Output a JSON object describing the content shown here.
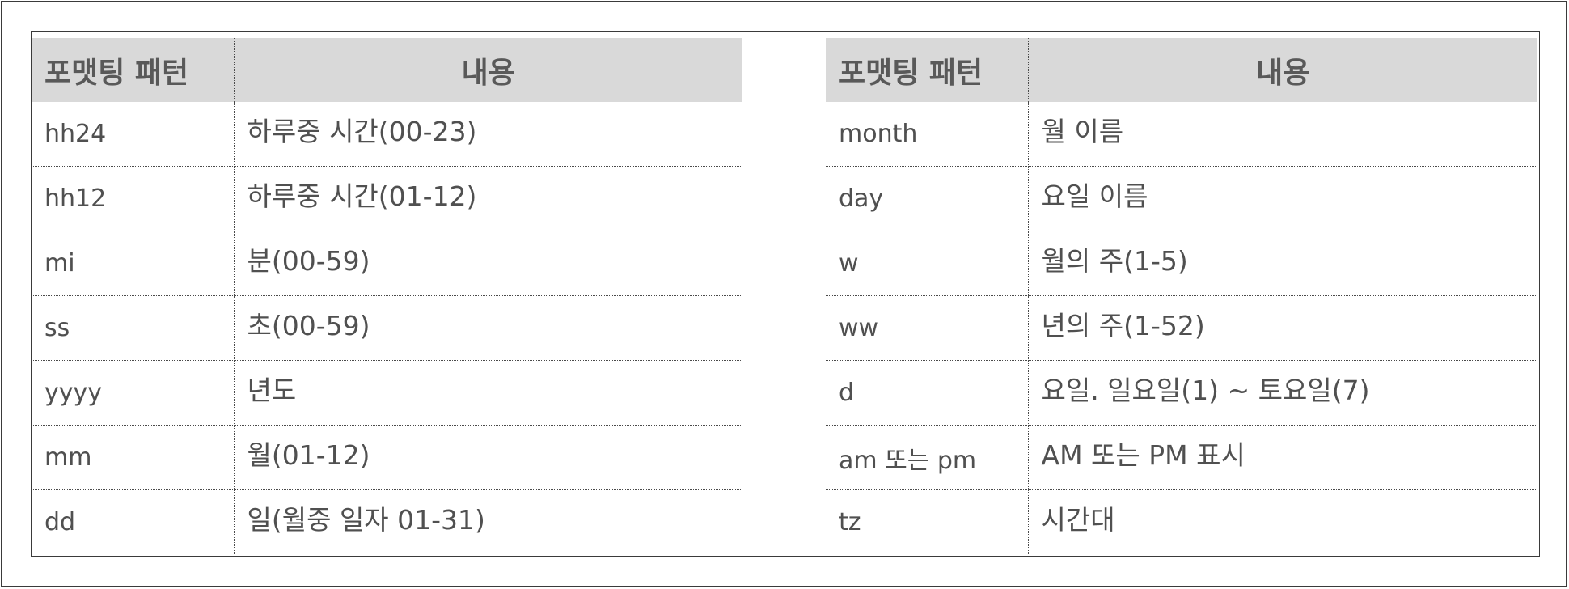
{
  "headers": {
    "pattern": "포맷팅 패턴",
    "content": "내용"
  },
  "left_table": [
    {
      "pattern": "hh24",
      "content": "하루중 시간(00-23)"
    },
    {
      "pattern": "hh12",
      "content": "하루중 시간(01-12)"
    },
    {
      "pattern": "mi",
      "content": "분(00-59)"
    },
    {
      "pattern": "ss",
      "content": "초(00-59)"
    },
    {
      "pattern": "yyyy",
      "content": "년도"
    },
    {
      "pattern": "mm",
      "content": "월(01-12)"
    },
    {
      "pattern": "dd",
      "content": "일(월중 일자 01-31)"
    }
  ],
  "right_table": [
    {
      "pattern": "month",
      "content": "월 이름"
    },
    {
      "pattern": "day",
      "content": "요일 이름"
    },
    {
      "pattern": "w",
      "content": "월의 주(1-5)"
    },
    {
      "pattern": "ww",
      "content": "년의 주(1-52)"
    },
    {
      "pattern": "d",
      "content": "요일. 일요일(1) ~ 토요일(7)"
    },
    {
      "pattern": "am 또는 pm",
      "content": "AM 또는 PM 표시"
    },
    {
      "pattern": "tz",
      "content": "시간대"
    }
  ],
  "colors": {
    "header_bg": "#d9d9d9",
    "text": "#505050",
    "border": "#3a3a3a"
  }
}
